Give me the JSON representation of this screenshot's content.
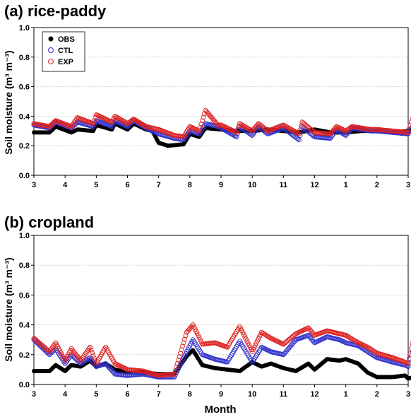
{
  "figure": {
    "shared_xlabel": "Month"
  },
  "legend_series": [
    {
      "name": "OBS",
      "marker": "filled-circle",
      "color": "#000000"
    },
    {
      "name": "CTL",
      "marker": "open-circle",
      "color": "#3333cc"
    },
    {
      "name": "EXP",
      "marker": "open-circle",
      "color": "#dd2222"
    }
  ],
  "chart_data": [
    {
      "type": "scatter",
      "title": "(a) rice-paddy",
      "ylabel": "Soil moisture (m³ m⁻³)",
      "xlabel": "",
      "xticks": [
        "3",
        "4",
        "5",
        "6",
        "7",
        "8",
        "9",
        "10",
        "11",
        "12",
        "1",
        "2",
        "3"
      ],
      "ylim": [
        0.0,
        1.0
      ],
      "yticks": [
        "0.0",
        "0.2",
        "0.4",
        "0.6",
        "0.8",
        "1.0"
      ],
      "grid": true,
      "legend_position": "top-left",
      "x_unit": "month index (0 = March, 12 = following March)",
      "series": [
        {
          "name": "OBS",
          "points": [
            [
              0,
              0.29
            ],
            [
              0.5,
              0.29
            ],
            [
              0.7,
              0.33
            ],
            [
              1.2,
              0.29
            ],
            [
              1.4,
              0.31
            ],
            [
              1.9,
              0.3
            ],
            [
              2.0,
              0.34
            ],
            [
              2.5,
              0.31
            ],
            [
              2.6,
              0.35
            ],
            [
              3.0,
              0.31
            ],
            [
              3.2,
              0.35
            ],
            [
              3.6,
              0.31
            ],
            [
              3.8,
              0.3
            ],
            [
              4.0,
              0.22
            ],
            [
              4.3,
              0.2
            ],
            [
              4.8,
              0.21
            ],
            [
              5.0,
              0.28
            ],
            [
              5.3,
              0.26
            ],
            [
              5.5,
              0.32
            ],
            [
              6.0,
              0.31
            ],
            [
              6.5,
              0.3
            ],
            [
              7.0,
              0.3
            ],
            [
              7.5,
              0.31
            ],
            [
              8.0,
              0.3
            ],
            [
              8.5,
              0.29
            ],
            [
              9.0,
              0.31
            ],
            [
              9.5,
              0.29
            ],
            [
              10.0,
              0.29
            ],
            [
              10.5,
              0.3
            ],
            [
              11.0,
              0.3
            ],
            [
              11.5,
              0.29
            ],
            [
              12.0,
              0.3
            ],
            [
              12.3,
              0.32
            ],
            [
              12.5,
              0.3
            ],
            [
              13.0,
              0.29
            ]
          ]
        },
        {
          "name": "CTL",
          "points": [
            [
              0,
              0.34
            ],
            [
              0.5,
              0.32
            ],
            [
              0.7,
              0.36
            ],
            [
              1.2,
              0.32
            ],
            [
              1.4,
              0.36
            ],
            [
              1.9,
              0.33
            ],
            [
              2.0,
              0.37
            ],
            [
              2.5,
              0.33
            ],
            [
              2.6,
              0.37
            ],
            [
              3.0,
              0.33
            ],
            [
              3.2,
              0.37
            ],
            [
              3.6,
              0.32
            ],
            [
              4.0,
              0.28
            ],
            [
              4.5,
              0.25
            ],
            [
              4.8,
              0.24
            ],
            [
              5.0,
              0.3
            ],
            [
              5.3,
              0.28
            ],
            [
              5.5,
              0.35
            ],
            [
              5.9,
              0.33
            ],
            [
              6.0,
              0.32
            ],
            [
              6.5,
              0.26
            ],
            [
              6.6,
              0.33
            ],
            [
              7.0,
              0.27
            ],
            [
              7.2,
              0.33
            ],
            [
              7.5,
              0.28
            ],
            [
              8.0,
              0.32
            ],
            [
              8.5,
              0.24
            ],
            [
              8.6,
              0.33
            ],
            [
              9.0,
              0.26
            ],
            [
              9.5,
              0.25
            ],
            [
              9.7,
              0.31
            ],
            [
              10.0,
              0.27
            ],
            [
              10.2,
              0.32
            ],
            [
              10.8,
              0.3
            ],
            [
              11.0,
              0.3
            ],
            [
              11.5,
              0.29
            ],
            [
              12.0,
              0.28
            ],
            [
              12.2,
              0.35
            ],
            [
              12.4,
              0.33
            ],
            [
              13.0,
              0.31
            ]
          ]
        },
        {
          "name": "EXP",
          "points": [
            [
              0,
              0.35
            ],
            [
              0.5,
              0.33
            ],
            [
              0.7,
              0.37
            ],
            [
              1.2,
              0.33
            ],
            [
              1.4,
              0.39
            ],
            [
              1.9,
              0.35
            ],
            [
              2.0,
              0.41
            ],
            [
              2.5,
              0.36
            ],
            [
              2.6,
              0.4
            ],
            [
              3.0,
              0.35
            ],
            [
              3.2,
              0.38
            ],
            [
              3.6,
              0.33
            ],
            [
              4.0,
              0.31
            ],
            [
              4.5,
              0.27
            ],
            [
              4.8,
              0.26
            ],
            [
              5.0,
              0.33
            ],
            [
              5.3,
              0.3
            ],
            [
              5.5,
              0.44
            ],
            [
              5.9,
              0.34
            ],
            [
              6.0,
              0.34
            ],
            [
              6.5,
              0.29
            ],
            [
              6.6,
              0.35
            ],
            [
              7.0,
              0.3
            ],
            [
              7.2,
              0.35
            ],
            [
              7.5,
              0.3
            ],
            [
              8.0,
              0.34
            ],
            [
              8.5,
              0.28
            ],
            [
              8.6,
              0.36
            ],
            [
              9.0,
              0.29
            ],
            [
              9.5,
              0.28
            ],
            [
              9.7,
              0.33
            ],
            [
              10.0,
              0.3
            ],
            [
              10.2,
              0.33
            ],
            [
              10.8,
              0.31
            ],
            [
              11.0,
              0.31
            ],
            [
              11.5,
              0.3
            ],
            [
              12.0,
              0.29
            ],
            [
              12.2,
              0.43
            ],
            [
              12.4,
              0.37
            ],
            [
              13.0,
              0.34
            ]
          ]
        }
      ]
    },
    {
      "type": "scatter",
      "title": "(b) cropland",
      "ylabel": "Soil moisture (m³ m⁻³)",
      "xlabel": "Month",
      "xticks": [
        "3",
        "4",
        "5",
        "6",
        "7",
        "8",
        "9",
        "10",
        "11",
        "12",
        "1",
        "2",
        "3"
      ],
      "ylim": [
        0.0,
        1.0
      ],
      "yticks": [
        "0.0",
        "0.2",
        "0.4",
        "0.6",
        "0.8",
        "1.0"
      ],
      "grid": true,
      "x_unit": "month index (0 = March, 12 = following March)",
      "series": [
        {
          "name": "OBS",
          "points": [
            [
              0,
              0.09
            ],
            [
              0.5,
              0.09
            ],
            [
              0.7,
              0.13
            ],
            [
              1.0,
              0.09
            ],
            [
              1.2,
              0.13
            ],
            [
              1.5,
              0.12
            ],
            [
              1.8,
              0.16
            ],
            [
              2.0,
              0.12
            ],
            [
              2.3,
              0.14
            ],
            [
              2.6,
              0.1
            ],
            [
              3.0,
              0.08
            ],
            [
              3.5,
              0.08
            ],
            [
              4.0,
              0.07
            ],
            [
              4.5,
              0.07
            ],
            [
              4.9,
              0.19
            ],
            [
              5.1,
              0.23
            ],
            [
              5.4,
              0.13
            ],
            [
              5.8,
              0.11
            ],
            [
              6.2,
              0.1
            ],
            [
              6.6,
              0.09
            ],
            [
              7.0,
              0.15
            ],
            [
              7.3,
              0.12
            ],
            [
              7.6,
              0.14
            ],
            [
              8.0,
              0.11
            ],
            [
              8.4,
              0.09
            ],
            [
              8.8,
              0.14
            ],
            [
              9.0,
              0.1
            ],
            [
              9.4,
              0.17
            ],
            [
              9.8,
              0.16
            ],
            [
              10.0,
              0.17
            ],
            [
              10.4,
              0.14
            ],
            [
              10.7,
              0.08
            ],
            [
              11.0,
              0.05
            ],
            [
              11.5,
              0.05
            ],
            [
              11.9,
              0.06
            ],
            [
              12.0,
              0.04
            ],
            [
              12.2,
              0.05
            ],
            [
              12.6,
              0.11
            ],
            [
              13.0,
              0.12
            ]
          ]
        },
        {
          "name": "CTL",
          "points": [
            [
              0,
              0.3
            ],
            [
              0.5,
              0.2
            ],
            [
              0.7,
              0.24
            ],
            [
              1.0,
              0.14
            ],
            [
              1.2,
              0.2
            ],
            [
              1.5,
              0.14
            ],
            [
              1.8,
              0.18
            ],
            [
              2.0,
              0.12
            ],
            [
              2.3,
              0.14
            ],
            [
              2.6,
              0.07
            ],
            [
              3.0,
              0.06
            ],
            [
              3.5,
              0.07
            ],
            [
              4.0,
              0.05
            ],
            [
              4.5,
              0.05
            ],
            [
              4.9,
              0.22
            ],
            [
              5.1,
              0.3
            ],
            [
              5.4,
              0.2
            ],
            [
              5.8,
              0.17
            ],
            [
              6.2,
              0.15
            ],
            [
              6.6,
              0.29
            ],
            [
              7.0,
              0.15
            ],
            [
              7.3,
              0.25
            ],
            [
              7.6,
              0.22
            ],
            [
              8.0,
              0.2
            ],
            [
              8.4,
              0.3
            ],
            [
              8.8,
              0.33
            ],
            [
              9.0,
              0.28
            ],
            [
              9.4,
              0.32
            ],
            [
              9.8,
              0.3
            ],
            [
              10.0,
              0.28
            ],
            [
              10.4,
              0.26
            ],
            [
              10.7,
              0.22
            ],
            [
              11.0,
              0.18
            ],
            [
              11.5,
              0.15
            ],
            [
              11.9,
              0.13
            ],
            [
              12.0,
              0.12
            ],
            [
              12.2,
              0.27
            ],
            [
              12.6,
              0.22
            ],
            [
              13.0,
              0.2
            ]
          ]
        },
        {
          "name": "EXP",
          "points": [
            [
              0,
              0.31
            ],
            [
              0.5,
              0.22
            ],
            [
              0.7,
              0.28
            ],
            [
              1.0,
              0.16
            ],
            [
              1.2,
              0.24
            ],
            [
              1.5,
              0.16
            ],
            [
              1.8,
              0.25
            ],
            [
              2.0,
              0.14
            ],
            [
              2.3,
              0.25
            ],
            [
              2.6,
              0.14
            ],
            [
              3.0,
              0.1
            ],
            [
              3.5,
              0.09
            ],
            [
              4.0,
              0.06
            ],
            [
              4.5,
              0.07
            ],
            [
              4.9,
              0.35
            ],
            [
              5.1,
              0.4
            ],
            [
              5.4,
              0.27
            ],
            [
              5.8,
              0.28
            ],
            [
              6.2,
              0.25
            ],
            [
              6.6,
              0.39
            ],
            [
              7.0,
              0.22
            ],
            [
              7.3,
              0.35
            ],
            [
              7.6,
              0.31
            ],
            [
              8.0,
              0.27
            ],
            [
              8.4,
              0.34
            ],
            [
              8.8,
              0.38
            ],
            [
              9.0,
              0.33
            ],
            [
              9.4,
              0.36
            ],
            [
              9.8,
              0.34
            ],
            [
              10.0,
              0.33
            ],
            [
              10.4,
              0.28
            ],
            [
              10.7,
              0.25
            ],
            [
              11.0,
              0.21
            ],
            [
              11.5,
              0.18
            ],
            [
              11.9,
              0.15
            ],
            [
              12.0,
              0.14
            ],
            [
              12.2,
              0.34
            ],
            [
              12.6,
              0.27
            ],
            [
              13.0,
              0.26
            ]
          ]
        }
      ]
    }
  ]
}
